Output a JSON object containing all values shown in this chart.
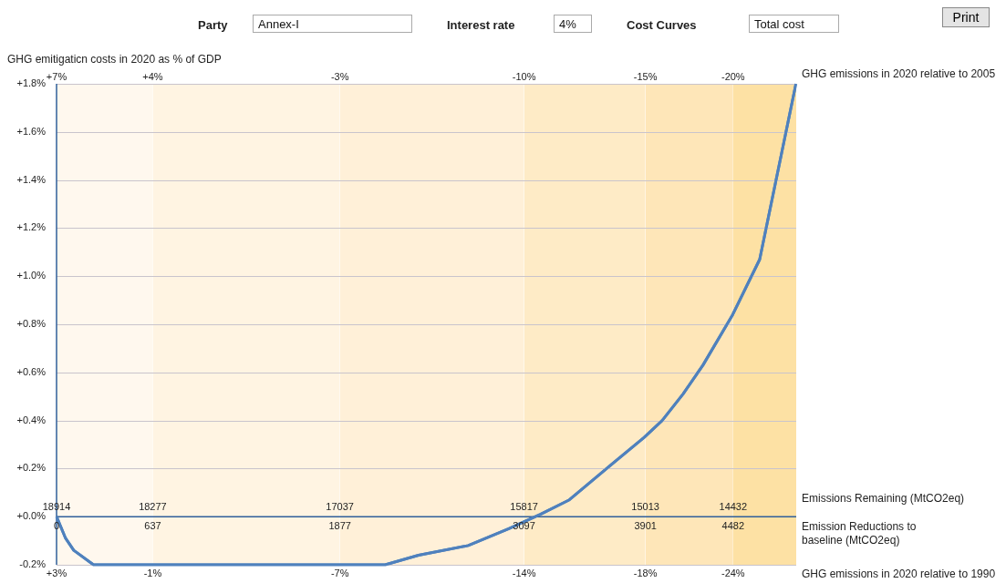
{
  "chart_data": {
    "type": "line",
    "ylabel": "GHG emitigaticn costs in 2020 as % of GDP",
    "xlabel": "Emission Reductions to baseline (MtCO2eq)",
    "x2label": "Emissions Remaining (MtCO2eq)",
    "xlim": [
      0,
      4900
    ],
    "x2lim": [
      18914,
      14014
    ],
    "ylim": [
      -0.2,
      1.8
    ],
    "yticks": [
      {
        "value": -0.2,
        "label": "-0.2%"
      },
      {
        "value": 0,
        "label": "+0.0%"
      },
      {
        "value": 0.2,
        "label": "+0.2%"
      },
      {
        "value": 0.4,
        "label": "+0.4%"
      },
      {
        "value": 0.6,
        "label": "+0.6%"
      },
      {
        "value": 0.8,
        "label": "+0.8%"
      },
      {
        "value": 1.0,
        "label": "+1.0%"
      },
      {
        "value": 1.2,
        "label": "+1.2%"
      },
      {
        "value": 1.4,
        "label": "+1.4%"
      },
      {
        "value": 1.6,
        "label": "+1.6%"
      },
      {
        "value": 1.8,
        "label": "+1.8%"
      }
    ],
    "xticks": [
      0,
      637,
      1877,
      3097,
      3901,
      4482
    ],
    "x2ticks": [
      18914,
      18277,
      17037,
      15817,
      15013,
      14432
    ],
    "grid": "y",
    "marker": "none",
    "line_style": "solid",
    "legend": false,
    "bands": [
      {
        "axis": "x",
        "from": 0,
        "to": 637,
        "color": "#fff8ee"
      },
      {
        "axis": "x",
        "from": 637,
        "to": 1877,
        "color": "#fff4e2"
      },
      {
        "axis": "x",
        "from": 1877,
        "to": 3097,
        "color": "#fff0d8"
      },
      {
        "axis": "x",
        "from": 3097,
        "to": 3901,
        "color": "#feebc6"
      },
      {
        "axis": "x",
        "from": 3901,
        "to": 4482,
        "color": "#fee6b8"
      },
      {
        "axis": "x",
        "from": 4482,
        "to": 4900,
        "color": "#fde1a4"
      }
    ],
    "annotations": [
      "Party",
      "Annex-I",
      "Interest rate",
      "4%",
      "Cost Curves",
      "Total cost",
      "Print",
      "GHG emissions in 2020 relative to 2005",
      "GHG emissions in 2020 relative to 1990",
      "+7%",
      "+4%",
      "-3%",
      "-10%",
      "-15%",
      "-20%",
      "+3%",
      "-1%",
      "-7%",
      "-14%",
      "-18%",
      "-24%"
    ],
    "series": [
      {
        "color": "#4f81bd",
        "x": [
          0,
          60,
          114,
          245,
          2177,
          2398,
          2727,
          2996,
          3205,
          3397,
          3624,
          3893,
          4012,
          4150,
          4282,
          4479,
          4658,
          4898
        ],
        "values": [
          0,
          -0.09,
          -0.14,
          -0.2,
          -0.2,
          -0.16,
          -0.12,
          -0.05,
          0.01,
          0.07,
          0.19,
          0.33,
          0.4,
          0.51,
          0.63,
          0.84,
          1.07,
          1.8
        ]
      }
    ]
  }
}
